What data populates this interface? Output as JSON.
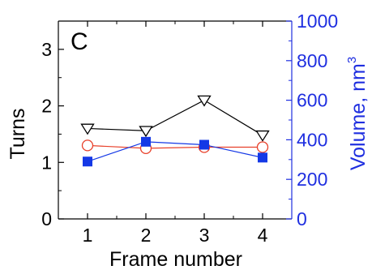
{
  "chart_data": {
    "type": "line",
    "panel_label": "C",
    "x": [
      1,
      2,
      3,
      4
    ],
    "xlim": [
      0.5,
      4.5
    ],
    "xticks": [
      1,
      2,
      3,
      4
    ],
    "xlabel": "Frame number",
    "y_left": {
      "label": "Turns",
      "lim": [
        0,
        3.5
      ],
      "ticks": [
        0,
        1,
        2,
        3
      ],
      "color": "#000000"
    },
    "y_right": {
      "label": "Volume, nm",
      "label_superscript": "3",
      "lim": [
        0,
        1000
      ],
      "ticks": [
        0,
        200,
        400,
        600,
        800,
        1000
      ],
      "color": "#1f2fe0"
    },
    "series": [
      {
        "axis": "left",
        "marker": "triangle-down-open",
        "color": "#000000",
        "values": [
          1.6,
          1.56,
          2.1,
          1.48
        ]
      },
      {
        "axis": "left",
        "marker": "circle-open",
        "color": "#e8402a",
        "values": [
          1.3,
          1.25,
          1.27,
          1.27
        ]
      },
      {
        "axis": "right",
        "marker": "square-filled",
        "color": "#1438e6",
        "values": [
          290,
          390,
          375,
          310
        ]
      }
    ]
  }
}
